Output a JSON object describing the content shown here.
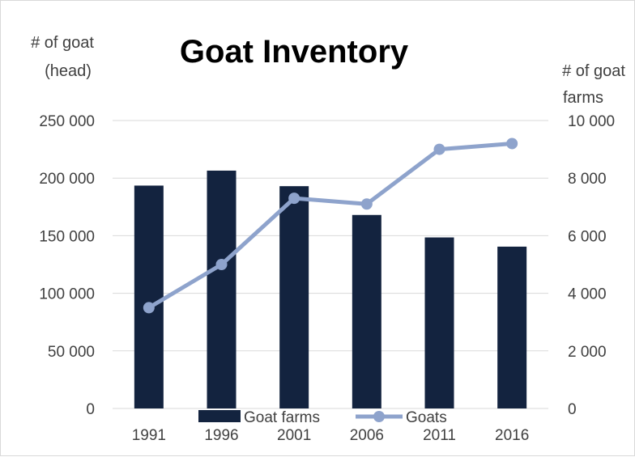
{
  "chart_data": {
    "type": "bar",
    "title": "Goat Inventory",
    "categories": [
      "1991",
      "1996",
      "2001",
      "2006",
      "2011",
      "2016"
    ],
    "y_left_label": [
      "# of goat",
      "(head)"
    ],
    "y_right_label": [
      "# of goat",
      "farms"
    ],
    "y_left_ticks": [
      "250 000",
      "200 000",
      "150 000",
      "100 000",
      "50 000",
      "0"
    ],
    "y_right_ticks": [
      "10 000",
      "8 000",
      "6 000",
      "4 000",
      "2 000",
      "0"
    ],
    "y_left_lim": [
      0,
      250000
    ],
    "y_right_lim": [
      0,
      10000
    ],
    "grid": true,
    "legend_position": "bottom",
    "series": [
      {
        "name": "Goat farms",
        "type": "bar",
        "axis": "left",
        "color": "#13233f",
        "values": [
          193500,
          206500,
          193000,
          168000,
          148500,
          140500
        ]
      },
      {
        "name": "Goats",
        "type": "line",
        "axis": "right",
        "color": "#8ea3cc",
        "values": [
          3500,
          5000,
          7300,
          7100,
          9000,
          9200
        ]
      }
    ]
  }
}
